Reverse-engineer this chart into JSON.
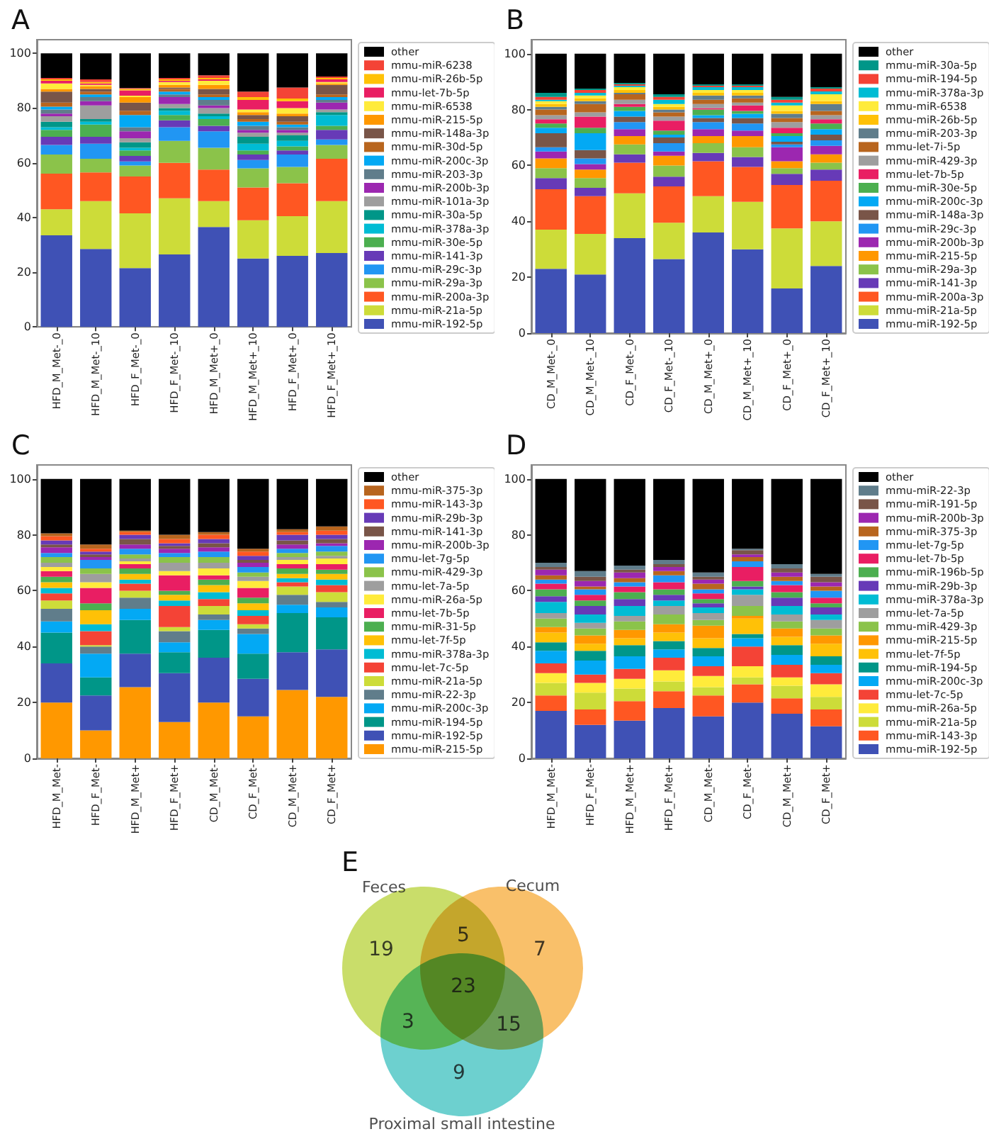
{
  "chart_data": [
    {
      "type": "bar",
      "title": "A",
      "stacked": true,
      "legend": "right",
      "ylim": [
        0,
        105
      ],
      "yticks": [
        0,
        20,
        40,
        60,
        80,
        100
      ],
      "categories": [
        "HFD_M_Met-_0",
        "HFD_M_Met-_10",
        "HFD_F_Met-_0",
        "HFD_F_Met-_10",
        "HFD_M_Met+_0",
        "HFD_M_Met+_10",
        "HFD_F_Met+_0",
        "HFD_F_Met+_10"
      ],
      "series": [
        {
          "name": "mmu-miR-192-5p",
          "color": "#3f51b5",
          "values": [
            33.5,
            28.5,
            21.5,
            26.5,
            36.5,
            25,
            26,
            27
          ]
        },
        {
          "name": "mmu-miR-21a-5p",
          "color": "#cddc39",
          "values": [
            9.5,
            17.5,
            20,
            20.5,
            9.5,
            14,
            14.5,
            19
          ]
        },
        {
          "name": "mmu-miR-200a-3p",
          "color": "#ff5722",
          "values": [
            13,
            10.5,
            13.5,
            13,
            11.5,
            12,
            12,
            15.5
          ]
        },
        {
          "name": "mmu-miR-29a-3p",
          "color": "#8bc34a",
          "values": [
            7,
            5,
            4,
            8,
            8,
            7,
            6,
            5
          ]
        },
        {
          "name": "mmu-miR-29c-3p",
          "color": "#2196f3",
          "values": [
            3.5,
            5.5,
            1.5,
            5,
            6,
            3,
            4.5,
            2
          ]
        },
        {
          "name": "mmu-miR-141-3p",
          "color": "#673ab7",
          "values": [
            3,
            2.5,
            2,
            2.5,
            2,
            2,
            1.5,
            3.5
          ]
        },
        {
          "name": "mmu-miR-30e-5p",
          "color": "#4caf50",
          "values": [
            2.5,
            4.5,
            2,
            2,
            2.5,
            1.5,
            1.5,
            1.5
          ]
        },
        {
          "name": "mmu-miR-378a-3p",
          "color": "#00bcd4",
          "values": [
            1,
            1,
            1,
            1.5,
            1,
            2.5,
            2,
            4
          ]
        },
        {
          "name": "mmu-miR-30a-5p",
          "color": "#009688",
          "values": [
            2,
            1,
            2,
            1,
            1,
            2.5,
            2,
            1
          ]
        },
        {
          "name": "mmu-miR-101a-3p",
          "color": "#9e9e9e",
          "values": [
            2,
            5,
            1.5,
            1.5,
            2,
            1.5,
            1,
            1
          ]
        },
        {
          "name": "mmu-miR-200b-3p",
          "color": "#9c27b0",
          "values": [
            1,
            1.5,
            2.5,
            2.5,
            1,
            1,
            1,
            2.5
          ]
        },
        {
          "name": "mmu-miR-203-3p",
          "color": "#607d8b",
          "values": [
            1.5,
            1.5,
            1.5,
            1,
            2,
            1.5,
            1,
            1
          ]
        },
        {
          "name": "mmu-miR-200c-3p",
          "color": "#03a9f4",
          "values": [
            1,
            1,
            4.5,
            1,
            1,
            1.5,
            1,
            1
          ]
        },
        {
          "name": "mmu-miR-30d-5p",
          "color": "#b8651e",
          "values": [
            1.5,
            1,
            1.5,
            1,
            1,
            1,
            1,
            1
          ]
        },
        {
          "name": "mmu-miR-148a-3p",
          "color": "#795548",
          "values": [
            4,
            1,
            3,
            0.5,
            2,
            1.5,
            2,
            3.5
          ]
        },
        {
          "name": "mmu-miR-215-5p",
          "color": "#ff9800",
          "values": [
            1,
            1,
            2,
            1,
            1.5,
            1,
            1,
            0.5
          ]
        },
        {
          "name": "mmu-miR-6538",
          "color": "#ffeb3b",
          "values": [
            2,
            0.5,
            0.5,
            1,
            1.5,
            1,
            2,
            0.5
          ]
        },
        {
          "name": "mmu-let-7b-5p",
          "color": "#e91e63",
          "values": [
            1,
            0.5,
            2,
            0.5,
            0.5,
            3.5,
            2.5,
            1
          ]
        },
        {
          "name": "mmu-miR-26b-5p",
          "color": "#ffc107",
          "values": [
            0.5,
            0.5,
            0.5,
            0.5,
            0.5,
            1,
            1,
            0.5
          ]
        },
        {
          "name": "mmu-miR-6238",
          "color": "#f44336",
          "values": [
            0.5,
            1,
            0.3,
            0.5,
            1,
            2,
            4,
            0.5
          ]
        },
        {
          "name": "other",
          "color": "#000000",
          "values": [
            9,
            9.5,
            12.7,
            9,
            8,
            14,
            12.5,
            8.5
          ]
        }
      ]
    },
    {
      "type": "bar",
      "title": "B",
      "stacked": true,
      "legend": "right",
      "ylim": [
        0,
        105
      ],
      "yticks": [
        0,
        20,
        40,
        60,
        80,
        100
      ],
      "categories": [
        "CD_M_Met-_0",
        "CD_M_Met-_10",
        "CD_F_Met-_0",
        "CD_F_Met-_10",
        "CD_M_Met+_0",
        "CD_M_Met+_10",
        "CD_F_Met+_0",
        "CD_F_Met+_10"
      ],
      "series": [
        {
          "name": "mmu-miR-192-5p",
          "color": "#3f51b5",
          "values": [
            23,
            21,
            34,
            26.5,
            36,
            30,
            16,
            24
          ]
        },
        {
          "name": "mmu-miR-21a-5p",
          "color": "#cddc39",
          "values": [
            14,
            14.5,
            16,
            13,
            13,
            17,
            21.5,
            16
          ]
        },
        {
          "name": "mmu-miR-200a-3p",
          "color": "#ff5722",
          "values": [
            14.5,
            13.5,
            11,
            13,
            12.5,
            12.5,
            15.5,
            14.5
          ]
        },
        {
          "name": "mmu-miR-141-3p",
          "color": "#673ab7",
          "values": [
            4,
            3,
            3,
            3.5,
            3,
            3.5,
            4,
            4
          ]
        },
        {
          "name": "mmu-miR-29a-3p",
          "color": "#8bc34a",
          "values": [
            3.5,
            3.5,
            3.5,
            4,
            3.5,
            3.5,
            2,
            2.5
          ]
        },
        {
          "name": "mmu-miR-215-5p",
          "color": "#ff9800",
          "values": [
            3.5,
            3,
            3,
            3.5,
            2.5,
            4,
            2.5,
            3
          ]
        },
        {
          "name": "mmu-miR-200b-3p",
          "color": "#9c27b0",
          "values": [
            2.5,
            2,
            2.5,
            1.5,
            2.5,
            2,
            5,
            3
          ]
        },
        {
          "name": "mmu-miR-29c-3p",
          "color": "#2196f3",
          "values": [
            1.5,
            2,
            2.5,
            3,
            2.5,
            2.5,
            1,
            2
          ]
        },
        {
          "name": "mmu-miR-148a-3p",
          "color": "#795548",
          "values": [
            5,
            3,
            2,
            2,
            1.5,
            2,
            1,
            2
          ]
        },
        {
          "name": "mmu-miR-200c-3p",
          "color": "#03a9f4",
          "values": [
            2,
            6,
            2,
            1,
            1,
            1.5,
            2,
            2
          ]
        },
        {
          "name": "mmu-miR-30e-5p",
          "color": "#4caf50",
          "values": [
            1.5,
            2,
            1.5,
            1.5,
            2,
            1,
            1,
            2
          ]
        },
        {
          "name": "mmu-let-7b-5p",
          "color": "#e91e63",
          "values": [
            1.5,
            4,
            1,
            3.5,
            0.5,
            2,
            2,
            1.5
          ]
        },
        {
          "name": "mmu-miR-429-3p",
          "color": "#9e9e9e",
          "values": [
            1.5,
            1.5,
            1.5,
            1.5,
            1.5,
            1,
            2,
            1.5
          ]
        },
        {
          "name": "mmu-let-7i-5p",
          "color": "#b8651e",
          "values": [
            2,
            3,
            2,
            1.5,
            1.5,
            1.5,
            1.5,
            1.5
          ]
        },
        {
          "name": "mmu-miR-203-3p",
          "color": "#607d8b",
          "values": [
            1,
            1,
            0.5,
            1,
            1.5,
            1,
            1.5,
            2.5
          ]
        },
        {
          "name": "mmu-miR-26b-5p",
          "color": "#ffc107",
          "values": [
            1,
            1,
            1,
            1,
            1,
            1,
            1,
            1
          ]
        },
        {
          "name": "mmu-miR-6538",
          "color": "#ffeb3b",
          "values": [
            1,
            1,
            1,
            1,
            1,
            1,
            2,
            2.5
          ]
        },
        {
          "name": "mmu-miR-378a-3p",
          "color": "#00bcd4",
          "values": [
            0.5,
            1,
            0.5,
            1.5,
            1,
            1,
            1,
            1
          ]
        },
        {
          "name": "mmu-miR-194-5p",
          "color": "#f44336",
          "values": [
            1,
            1,
            0.5,
            1,
            0.5,
            0.5,
            1,
            1
          ]
        },
        {
          "name": "mmu-miR-30a-5p",
          "color": "#009688",
          "values": [
            1.5,
            0.5,
            0.5,
            1,
            0.5,
            0.5,
            1,
            0.5
          ]
        },
        {
          "name": "other",
          "color": "#000000",
          "values": [
            14,
            12.5,
            10.5,
            14.5,
            11,
            11,
            15.5,
            12
          ]
        }
      ]
    },
    {
      "type": "bar",
      "title": "C",
      "stacked": true,
      "legend": "right",
      "ylim": [
        0,
        105
      ],
      "yticks": [
        0,
        20,
        40,
        60,
        80,
        100
      ],
      "categories": [
        "HFD_M_Met-",
        "HFD_F_Met-",
        "HFD_M_Met+",
        "HFD_F_Met+",
        "CD_M_Met-",
        "CD_F_Met-",
        "CD_M_Met+",
        "CD_F_Met+"
      ],
      "series": [
        {
          "name": "mmu-miR-215-5p",
          "color": "#ff9800",
          "values": [
            20,
            10,
            25.5,
            13,
            20,
            15,
            24.5,
            22
          ]
        },
        {
          "name": "mmu-miR-192-5p",
          "color": "#3f51b5",
          "values": [
            14,
            12.5,
            12,
            17.5,
            16,
            13.5,
            13.5,
            17
          ]
        },
        {
          "name": "mmu-miR-194-5p",
          "color": "#009688",
          "values": [
            11,
            6.5,
            12,
            7.5,
            10,
            9,
            14,
            11.5
          ]
        },
        {
          "name": "mmu-miR-200c-3p",
          "color": "#03a9f4",
          "values": [
            4,
            8.5,
            4,
            3.5,
            3.5,
            7,
            3,
            3.5
          ]
        },
        {
          "name": "mmu-miR-22-3p",
          "color": "#607d8b",
          "values": [
            4.5,
            2.5,
            4,
            4,
            2,
            2,
            3.5,
            2
          ]
        },
        {
          "name": "mmu-miR-21a-5p",
          "color": "#cddc39",
          "values": [
            3,
            0.5,
            2.5,
            1.5,
            3,
            1.5,
            3,
            3.5
          ]
        },
        {
          "name": "mmu-let-7c-5p",
          "color": "#f44336",
          "values": [
            2.5,
            5,
            2.5,
            7.5,
            2.5,
            3,
            1.5,
            2.5
          ]
        },
        {
          "name": "mmu-miR-378a-3p",
          "color": "#00bcd4",
          "values": [
            2,
            2.5,
            1.5,
            2,
            2.5,
            2,
            1.5,
            2
          ]
        },
        {
          "name": "mmu-let-7f-5p",
          "color": "#ffc107",
          "values": [
            2,
            5,
            2,
            2,
            2.5,
            2.5,
            1.5,
            2
          ]
        },
        {
          "name": "mmu-miR-31-5p",
          "color": "#4caf50",
          "values": [
            2,
            2.5,
            2,
            1.5,
            2,
            2,
            2,
            1.5
          ]
        },
        {
          "name": "mmu-let-7b-5p",
          "color": "#e91e63",
          "values": [
            2,
            5.5,
            1.5,
            5.5,
            1.5,
            3.5,
            1.5,
            2
          ]
        },
        {
          "name": "mmu-miR-26a-5p",
          "color": "#ffeb3b",
          "values": [
            1.5,
            2,
            1,
            1.5,
            2.5,
            2.5,
            1.5,
            2
          ]
        },
        {
          "name": "mmu-let-7a-5p",
          "color": "#9e9e9e",
          "values": [
            1.5,
            3,
            1,
            3,
            2,
            1.5,
            1,
            1
          ]
        },
        {
          "name": "mmu-miR-429-3p",
          "color": "#8bc34a",
          "values": [
            2,
            2,
            1.5,
            2,
            2,
            1.5,
            1.5,
            1.5
          ]
        },
        {
          "name": "mmu-let-7g-5p",
          "color": "#2196f3",
          "values": [
            1.5,
            3,
            2,
            1.5,
            2,
            2,
            1.5,
            2
          ]
        },
        {
          "name": "mmu-miR-200b-3p",
          "color": "#9c27b0",
          "values": [
            2,
            1,
            1.5,
            1.5,
            1.5,
            1.5,
            1.5,
            1
          ]
        },
        {
          "name": "mmu-miR-141-3p",
          "color": "#795548",
          "values": [
            1,
            1,
            2,
            1,
            1.5,
            1,
            1.5,
            1.5
          ]
        },
        {
          "name": "mmu-miR-29b-3p",
          "color": "#673ab7",
          "values": [
            1.5,
            1,
            1.5,
            1,
            1.5,
            1.5,
            2,
            1.5
          ]
        },
        {
          "name": "mmu-miR-143-3p",
          "color": "#ff5722",
          "values": [
            1.5,
            1,
            1,
            1.5,
            1.5,
            1.5,
            1,
            1.5
          ]
        },
        {
          "name": "mmu-miR-375-3p",
          "color": "#b8651e",
          "values": [
            1,
            1.5,
            0.5,
            1.5,
            1,
            1,
            1,
            1.5
          ]
        },
        {
          "name": "other",
          "color": "#000000",
          "values": [
            19.5,
            23.5,
            18.5,
            20,
            19,
            25,
            18,
            17
          ]
        }
      ]
    },
    {
      "type": "bar",
      "title": "D",
      "stacked": true,
      "legend": "right",
      "ylim": [
        0,
        105
      ],
      "yticks": [
        0,
        20,
        40,
        60,
        80,
        100
      ],
      "categories": [
        "HFD_M_Met-",
        "HFD_F_Met-",
        "HFD_M_Met+",
        "HFD_F_Met+",
        "CD_M_Met-",
        "CD_F_Met-",
        "CD_M_Met+",
        "CD_F_Met+"
      ],
      "series": [
        {
          "name": "mmu-miR-192-5p",
          "color": "#3f51b5",
          "values": [
            17,
            12,
            13.5,
            18,
            15,
            20,
            16,
            11.5
          ]
        },
        {
          "name": "mmu-miR-143-3p",
          "color": "#ff5722",
          "values": [
            5.5,
            5.5,
            7,
            6,
            7.5,
            6.5,
            5.5,
            6
          ]
        },
        {
          "name": "mmu-miR-21a-5p",
          "color": "#cddc39",
          "values": [
            4.5,
            6,
            4.5,
            3.5,
            3,
            2.5,
            4.5,
            4.5
          ]
        },
        {
          "name": "mmu-miR-26a-5p",
          "color": "#ffeb3b",
          "values": [
            3.5,
            3.5,
            3.5,
            4,
            4,
            4,
            3,
            4.5
          ]
        },
        {
          "name": "mmu-let-7c-5p",
          "color": "#f44336",
          "values": [
            3.5,
            3,
            3.5,
            4.5,
            3.5,
            7,
            4.5,
            4
          ]
        },
        {
          "name": "mmu-miR-200c-3p",
          "color": "#03a9f4",
          "values": [
            4.5,
            5,
            4.5,
            3,
            3.5,
            3,
            3.5,
            3
          ]
        },
        {
          "name": "mmu-miR-194-5p",
          "color": "#009688",
          "values": [
            3,
            3.5,
            4,
            3,
            3,
            1.5,
            3.5,
            3
          ]
        },
        {
          "name": "mmu-let-7f-5p",
          "color": "#ffc107",
          "values": [
            3.5,
            2.5,
            2.5,
            3,
            3.5,
            5.5,
            3,
            4.5
          ]
        },
        {
          "name": "mmu-miR-215-5p",
          "color": "#ff9800",
          "values": [
            2,
            3,
            3,
            3,
            4.5,
            1,
            3,
            3
          ]
        },
        {
          "name": "mmu-miR-429-3p",
          "color": "#8bc34a",
          "values": [
            3,
            2.5,
            3,
            3.5,
            2,
            3.5,
            2.5,
            2.5
          ]
        },
        {
          "name": "mmu-let-7a-5p",
          "color": "#9e9e9e",
          "values": [
            2,
            2,
            2,
            3,
            2.5,
            4,
            2.5,
            3
          ]
        },
        {
          "name": "mmu-miR-378a-3p",
          "color": "#00bcd4",
          "values": [
            4,
            3,
            3.5,
            2,
            2,
            2,
            3,
            2
          ]
        },
        {
          "name": "mmu-miR-29b-3p",
          "color": "#673ab7",
          "values": [
            2,
            3,
            2.5,
            2,
            1.5,
            1,
            3,
            2.5
          ]
        },
        {
          "name": "mmu-miR-196b-5p",
          "color": "#4caf50",
          "values": [
            2.5,
            2,
            2.5,
            2,
            1.5,
            2,
            2,
            1.5
          ]
        },
        {
          "name": "mmu-let-7b-5p",
          "color": "#e91e63",
          "values": [
            2,
            2,
            2,
            2.5,
            2,
            5,
            2.5,
            2
          ]
        },
        {
          "name": "mmu-let-7g-5p",
          "color": "#2196f3",
          "values": [
            1.5,
            2,
            1.5,
            2.5,
            1.5,
            2,
            1.5,
            2.5
          ]
        },
        {
          "name": "mmu-miR-375-3p",
          "color": "#b8651e",
          "values": [
            1.5,
            1,
            1.5,
            1.5,
            2,
            1.5,
            1.5,
            1.5
          ]
        },
        {
          "name": "mmu-miR-200b-3p",
          "color": "#9c27b0",
          "values": [
            2,
            2,
            2,
            1.5,
            1.5,
            1,
            1.5,
            1.5
          ]
        },
        {
          "name": "mmu-miR-191-5p",
          "color": "#795548",
          "values": [
            1,
            1.5,
            1,
            1,
            1,
            1.5,
            1.5,
            2
          ]
        },
        {
          "name": "mmu-miR-22-3p",
          "color": "#607d8b",
          "values": [
            1.5,
            2,
            1.5,
            1.5,
            1.5,
            0.5,
            1.5,
            1
          ]
        },
        {
          "name": "other",
          "color": "#000000",
          "values": [
            30,
            33,
            31,
            29,
            33.5,
            25,
            30.5,
            34
          ]
        }
      ]
    },
    {
      "type": "other",
      "title": "E",
      "series": [
        {
          "name": "Feces"
        },
        {
          "name": "Cecum"
        },
        {
          "name": "Proximal small intestine"
        }
      ],
      "annotations": [
        "19",
        "7",
        "9",
        "5",
        "3",
        "15",
        "23"
      ]
    }
  ]
}
